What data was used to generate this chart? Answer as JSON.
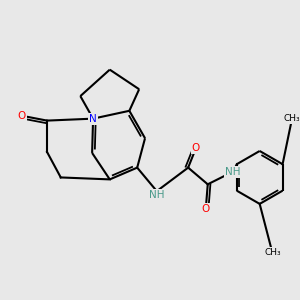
{
  "background_color": "#e8e8e8",
  "figsize": [
    3.0,
    3.0
  ],
  "dpi": 100,
  "bond_color": "#000000",
  "bond_width": 1.5,
  "atom_colors": {
    "N": "#0000ff",
    "O": "#ff0000",
    "NH": "#4a9a8a",
    "C": "#000000"
  }
}
